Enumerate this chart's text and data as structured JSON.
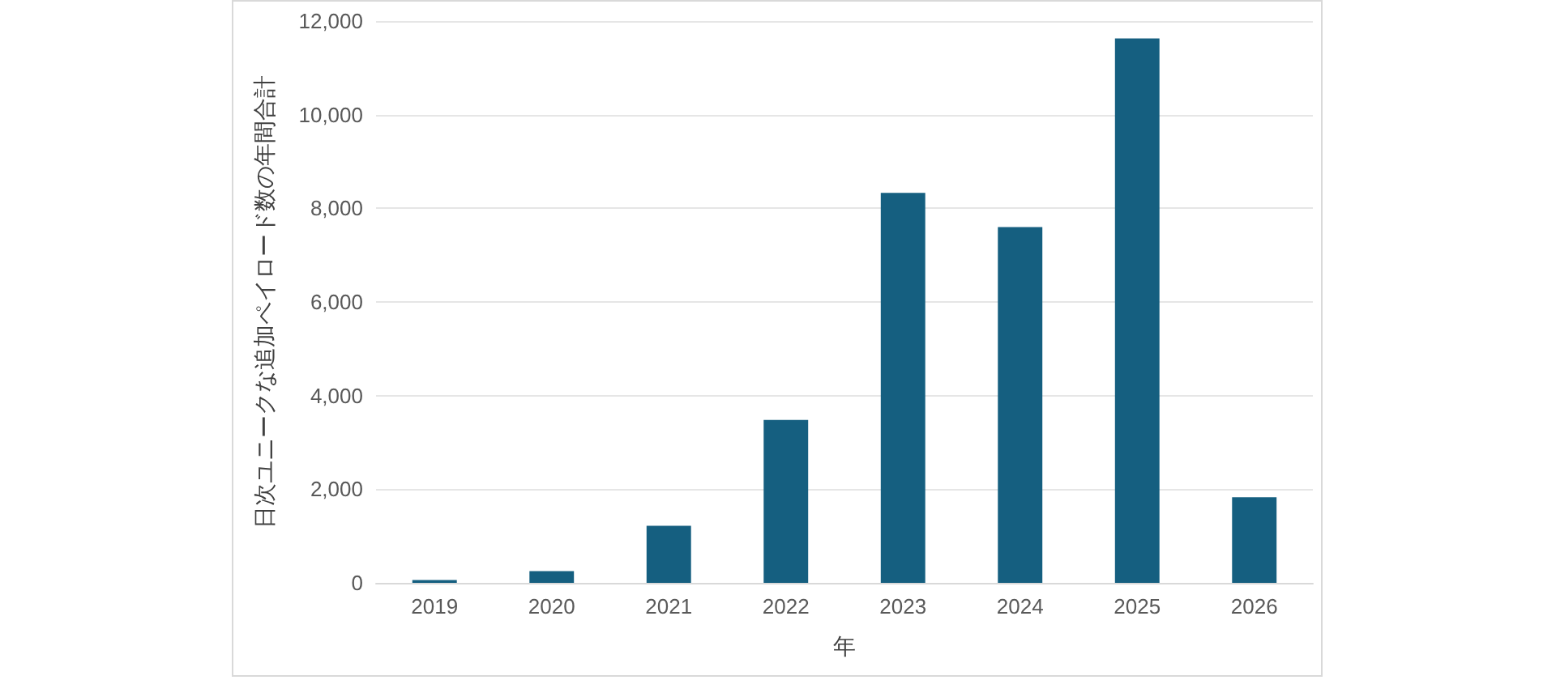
{
  "chart_data": {
    "type": "bar",
    "xlabel": "年",
    "ylabel": "日次ユニークな追加ペイロード数の年間合計",
    "categories": [
      "2019",
      "2020",
      "2021",
      "2022",
      "2023",
      "2024",
      "2025",
      "2026"
    ],
    "values": [
      60,
      250,
      1220,
      3480,
      8330,
      7600,
      11630,
      1830
    ],
    "color": "#155f80",
    "ylim": [
      0,
      12000
    ],
    "yticks": [
      0,
      {
        "value": 2000,
        "label": "2,000"
      },
      {
        "value": 4000,
        "label": "4,000"
      },
      {
        "value": 6000,
        "label": "6,000"
      },
      {
        "value": 8000,
        "label": "8,000"
      },
      {
        "value": 10000,
        "label": "10,000"
      },
      {
        "value": 12000,
        "label": "12,000"
      }
    ],
    "grid": "y"
  }
}
